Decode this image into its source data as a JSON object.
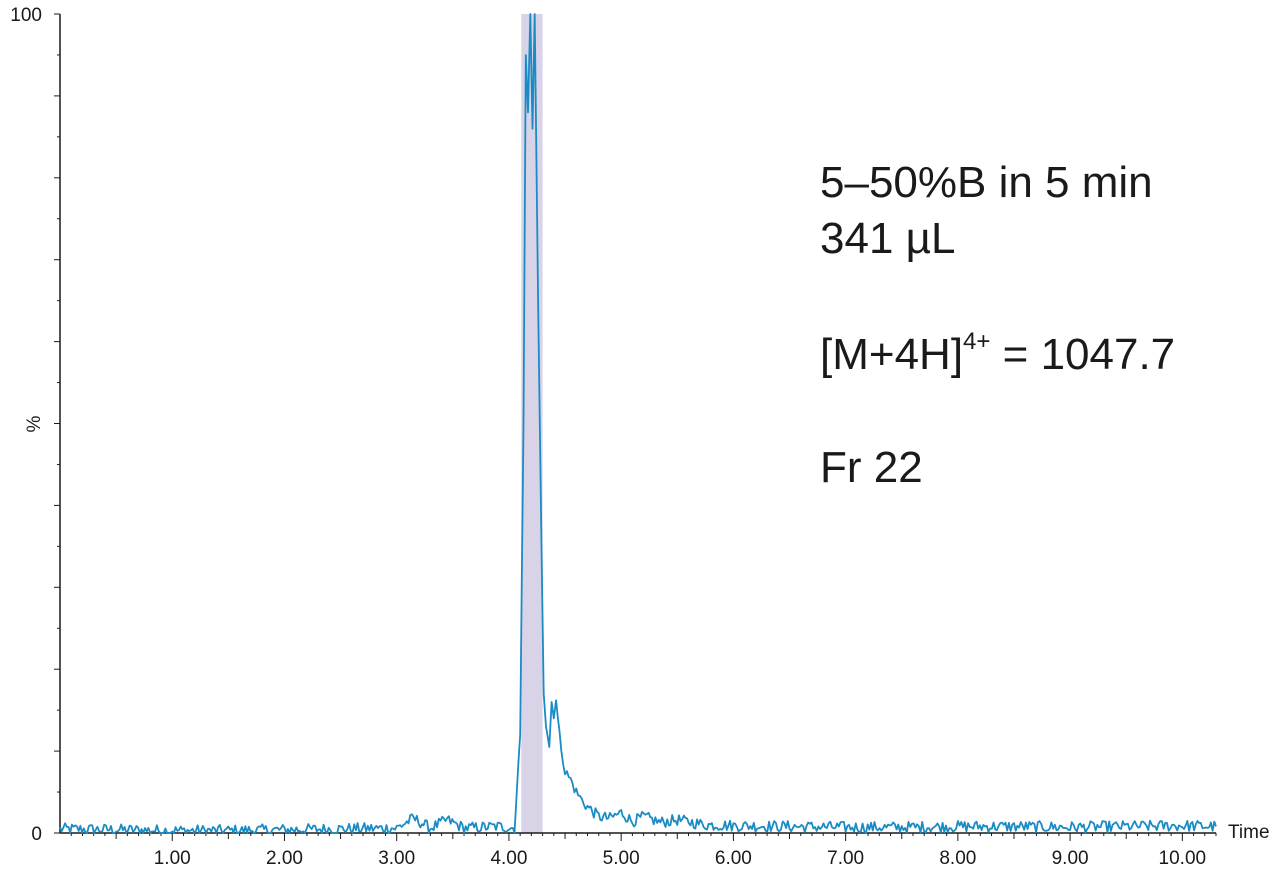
{
  "chart_data": {
    "type": "line",
    "title": "",
    "xlabel": "Time",
    "ylabel": "%",
    "xlim": [
      0.0,
      10.3
    ],
    "ylim": [
      0,
      100
    ],
    "x_ticks": [
      "1.00",
      "2.00",
      "3.00",
      "4.00",
      "5.00",
      "6.00",
      "7.00",
      "8.00",
      "9.00",
      "10.00"
    ],
    "y_tick_labels": [
      "0",
      "100"
    ],
    "grid": false,
    "line_color": "#1a8cc4",
    "highlight": {
      "x_range": [
        4.11,
        4.3
      ],
      "color": "#d9d3e8"
    },
    "series": [
      {
        "values": [
          [
            0.0,
            0.5
          ],
          [
            0.5,
            0.4
          ],
          [
            1.0,
            0.3
          ],
          [
            1.5,
            0.3
          ],
          [
            2.0,
            0.4
          ],
          [
            2.5,
            0.5
          ],
          [
            3.0,
            0.6
          ],
          [
            3.15,
            1.8
          ],
          [
            3.3,
            0.6
          ],
          [
            3.45,
            1.6
          ],
          [
            3.6,
            0.6
          ],
          [
            3.9,
            0.8
          ],
          [
            4.05,
            0.6
          ],
          [
            4.1,
            12
          ],
          [
            4.13,
            50
          ],
          [
            4.15,
            95
          ],
          [
            4.17,
            88
          ],
          [
            4.19,
            100
          ],
          [
            4.21,
            86
          ],
          [
            4.23,
            100
          ],
          [
            4.26,
            65
          ],
          [
            4.29,
            35
          ],
          [
            4.31,
            17
          ],
          [
            4.33,
            13
          ],
          [
            4.36,
            10.5
          ],
          [
            4.38,
            16
          ],
          [
            4.4,
            14
          ],
          [
            4.42,
            16.2
          ],
          [
            4.45,
            12
          ],
          [
            4.5,
            7.5
          ],
          [
            4.55,
            6.5
          ],
          [
            4.6,
            5
          ],
          [
            4.65,
            4
          ],
          [
            4.7,
            3.2
          ],
          [
            4.8,
            2
          ],
          [
            4.9,
            1.8
          ],
          [
            5.0,
            2.5
          ],
          [
            5.1,
            1.4
          ],
          [
            5.2,
            2
          ],
          [
            5.35,
            1.3
          ],
          [
            5.5,
            1.6
          ],
          [
            5.75,
            1
          ],
          [
            6.0,
            0.9
          ],
          [
            6.5,
            0.8
          ],
          [
            7.0,
            0.7
          ],
          [
            7.5,
            0.7
          ],
          [
            8.0,
            0.8
          ],
          [
            8.5,
            0.8
          ],
          [
            9.0,
            0.7
          ],
          [
            9.5,
            0.8
          ],
          [
            10.0,
            0.9
          ],
          [
            10.3,
            0.8
          ]
        ]
      }
    ],
    "annotations": {
      "line1": "5–50%B in 5 min",
      "line2": "341 µL",
      "ion_base": "[M+4H]",
      "ion_charge": "4+",
      "ion_value": " = 1047.7",
      "fraction": "Fr 22"
    }
  }
}
